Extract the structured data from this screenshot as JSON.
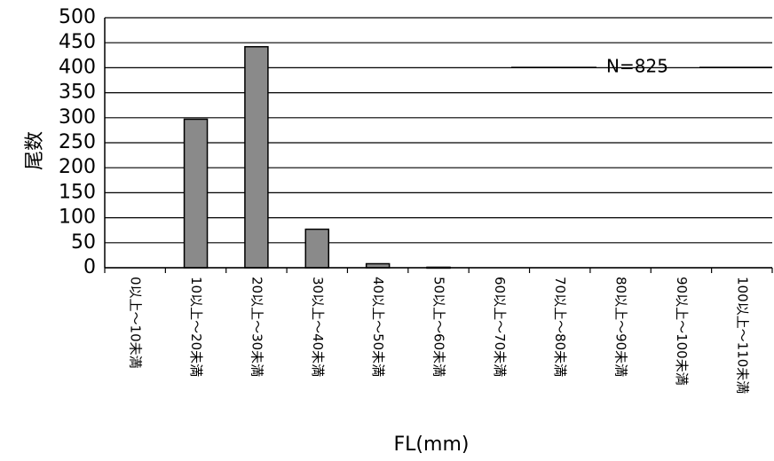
{
  "chart_data": {
    "type": "bar",
    "categories": [
      "0以上～10未満",
      "10以上～20未満",
      "20以上～30未満",
      "30以上～40未満",
      "40以上～50未満",
      "50以上～60未満",
      "60以上～70未満",
      "70以上～80未満",
      "80以上～90未満",
      "90以上～100未満",
      "100以上～110未満"
    ],
    "values": [
      0,
      297,
      442,
      77,
      8,
      1,
      0,
      0,
      0,
      0,
      0
    ],
    "xlabel": "FL(mm)",
    "ylabel": "尾数",
    "ylim": [
      0,
      500
    ],
    "yticks": [
      0,
      50,
      100,
      150,
      200,
      250,
      300,
      350,
      400,
      450,
      500
    ],
    "grid": true,
    "annotation": "N=825",
    "bar_color": "#8a8a8a"
  }
}
